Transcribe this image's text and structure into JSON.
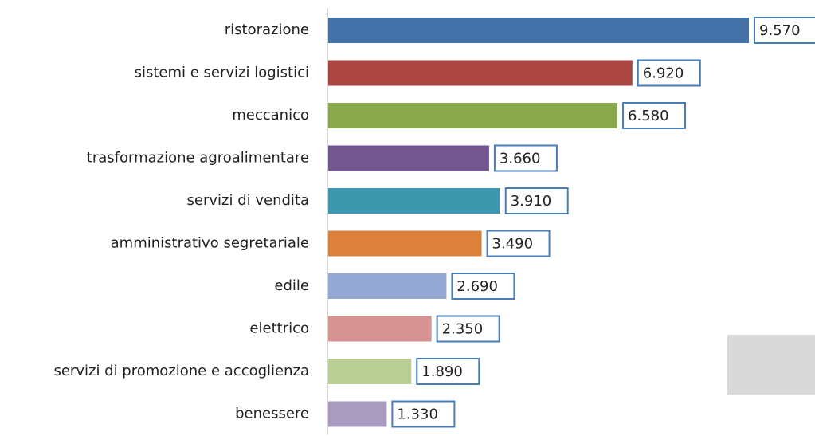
{
  "chart_data": {
    "type": "bar",
    "orientation": "horizontal",
    "categories": [
      "ristorazione",
      "sistemi e servizi logistici",
      "meccanico",
      "trasformazione agroalimentare",
      "servizi di vendita ",
      "amministrativo segretariale",
      "edile",
      "elettrico",
      "servizi di promozione e accoglienza",
      "benessere"
    ],
    "values": [
      9570,
      6920,
      6580,
      3660,
      3910,
      3490,
      2690,
      2350,
      1890,
      1330
    ],
    "value_labels": [
      "9.570",
      "6.920",
      "6.580",
      "3.660",
      "3.910",
      "3.490",
      "2.690",
      "2.350",
      "1.890",
      "1.330"
    ],
    "colors": [
      "#4472a8",
      "#ab4542",
      "#88a84a",
      "#71578e",
      "#3d98ae",
      "#db813b",
      "#93a9d3",
      "#d79392",
      "#b9cf95",
      "#a99bc0"
    ]
  }
}
